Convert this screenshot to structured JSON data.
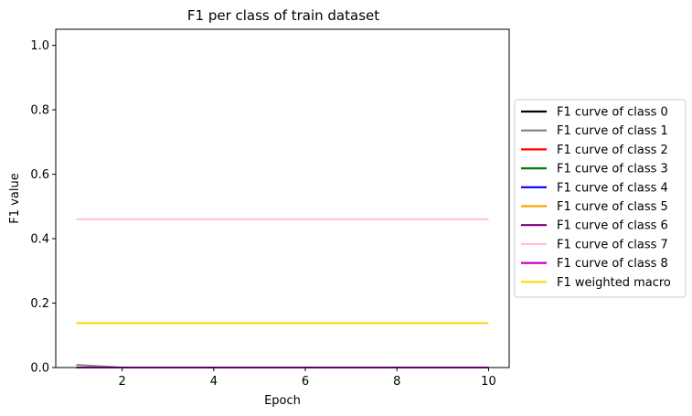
{
  "chart_data": {
    "type": "line",
    "title": "F1 per class of train dataset",
    "xlabel": "Epoch",
    "ylabel": "F1 value",
    "xlim": [
      0.55,
      10.45
    ],
    "ylim": [
      0.0,
      1.05
    ],
    "xticks": [
      2,
      4,
      6,
      8,
      10
    ],
    "yticks": [
      0.0,
      0.2,
      0.4,
      0.6,
      0.8,
      1.0
    ],
    "ytick_labels": [
      "0.0",
      "0.2",
      "0.4",
      "0.6",
      "0.8",
      "1.0"
    ],
    "grid": false,
    "legend_position": "outside-right",
    "x": [
      1,
      2,
      3,
      4,
      5,
      6,
      7,
      8,
      9,
      10
    ],
    "series": [
      {
        "name": "F1 curve of class 0",
        "color": "#000000",
        "values": [
          0,
          0,
          0,
          0,
          0,
          0,
          0,
          0,
          0,
          0
        ]
      },
      {
        "name": "F1 curve of class 1",
        "color": "#808080",
        "values": [
          0.008,
          0,
          0,
          0,
          0,
          0,
          0,
          0,
          0,
          0
        ]
      },
      {
        "name": "F1 curve of class 2",
        "color": "#ff0000",
        "values": [
          0,
          0,
          0,
          0,
          0,
          0,
          0,
          0,
          0,
          0
        ]
      },
      {
        "name": "F1 curve of class 3",
        "color": "#008000",
        "values": [
          0,
          0,
          0,
          0,
          0,
          0,
          0,
          0,
          0,
          0
        ]
      },
      {
        "name": "F1 curve of class 4",
        "color": "#0000ff",
        "values": [
          0,
          0,
          0,
          0,
          0,
          0,
          0,
          0,
          0,
          0
        ]
      },
      {
        "name": "F1 curve of class 5",
        "color": "#ffa500",
        "values": [
          0,
          0,
          0,
          0,
          0,
          0,
          0,
          0,
          0,
          0
        ]
      },
      {
        "name": "F1 curve of class 6",
        "color": "#800080",
        "values": [
          0,
          0,
          0,
          0,
          0,
          0,
          0,
          0,
          0,
          0
        ]
      },
      {
        "name": "F1 curve of class 7",
        "color": "#ffc0cb",
        "values": [
          0.46,
          0.46,
          0.46,
          0.46,
          0.46,
          0.46,
          0.46,
          0.46,
          0.46,
          0.46
        ]
      },
      {
        "name": "F1 curve of class 8",
        "color": "#c000c0",
        "values": [
          0,
          0,
          0,
          0,
          0,
          0,
          0,
          0,
          0,
          0
        ]
      },
      {
        "name": "F1 weighted macro",
        "color": "#ffd700",
        "values": [
          0.138,
          0.138,
          0.138,
          0.138,
          0.138,
          0.138,
          0.138,
          0.138,
          0.138,
          0.138
        ]
      }
    ]
  }
}
